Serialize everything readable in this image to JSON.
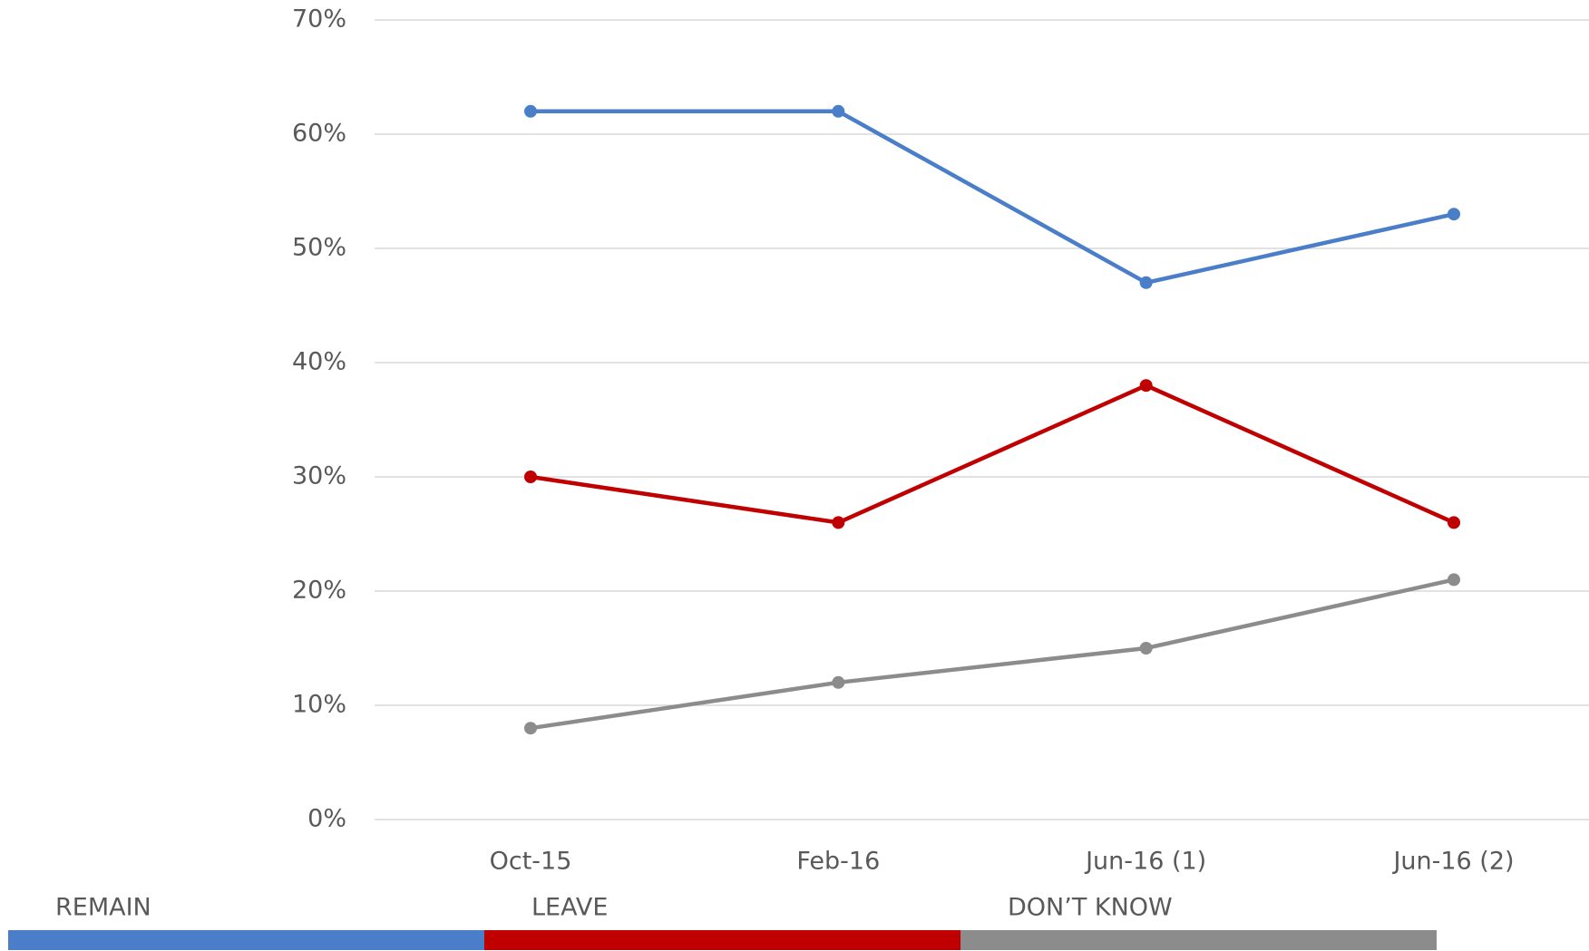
{
  "chart_data": {
    "type": "line",
    "categories": [
      "Oct-15",
      "Feb-16",
      "Jun-16 (1)",
      "Jun-16 (2)"
    ],
    "series": [
      {
        "name": "REMAIN",
        "color": "#4a7ec8",
        "values": [
          62,
          62,
          47,
          53
        ]
      },
      {
        "name": "LEAVE",
        "color": "#c00000",
        "values": [
          30,
          26,
          38,
          26
        ]
      },
      {
        "name": "DON’T KNOW",
        "color": "#8c8c8c",
        "values": [
          8,
          12,
          15,
          21
        ]
      }
    ],
    "ylim": [
      0,
      70
    ],
    "yticks": [
      {
        "value": 0,
        "label": "0%"
      },
      {
        "value": 10,
        "label": "10%"
      },
      {
        "value": 20,
        "label": "20%"
      },
      {
        "value": 30,
        "label": "30%"
      },
      {
        "value": 40,
        "label": "40%"
      },
      {
        "value": 50,
        "label": "50%"
      },
      {
        "value": 60,
        "label": "60%"
      },
      {
        "value": 70,
        "label": "70%"
      }
    ],
    "grid": true,
    "legend": "bottom"
  }
}
